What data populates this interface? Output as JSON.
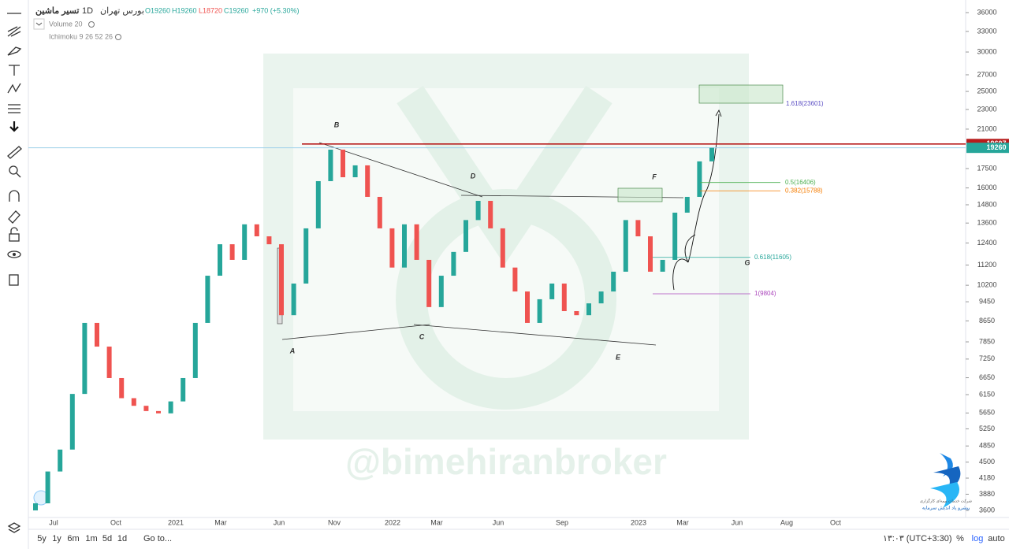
{
  "header": {
    "symbol": "تسیر ماشین",
    "interval": "1D",
    "exchange": "بورس تهران",
    "ohlc": [
      "O19260",
      "H19260",
      "L18720",
      "C19260",
      "+970 (+5.30%)"
    ],
    "indicators": [
      "Volume 20",
      "Ichimoku 9 26 52 26"
    ]
  },
  "chart": {
    "type": "candlestick",
    "log_scale": true,
    "grid": false,
    "up_color": "#26a69a",
    "down_color": "#ef5350",
    "ylim": [
      3600,
      36000
    ],
    "yticks": [
      36000,
      33000,
      30000,
      27000,
      25000,
      23000,
      21000,
      17500,
      16000,
      14800,
      13600,
      12400,
      11200,
      10200,
      9450,
      8650,
      7850,
      7250,
      6650,
      6150,
      5650,
      5250,
      4850,
      4500,
      4180,
      3880,
      3600
    ],
    "xticks": [
      "Jul",
      "Oct",
      "2021",
      "Mar",
      "Jun",
      "Nov",
      "2022",
      "Mar",
      "Jun",
      "Sep",
      "2023",
      "Mar",
      "Jun",
      "Aug",
      "Oct"
    ],
    "open": [
      3600,
      3720,
      4310,
      4770,
      6170,
      8570,
      7680,
      6640,
      6050,
      5840,
      5700,
      5640,
      5960,
      6640,
      8570,
      10660,
      12330,
      11470,
      13520,
      12790,
      12330,
      8880,
      10280,
      13270,
      16510,
      19100,
      16810,
      17760,
      15350,
      13270,
      11070,
      13520,
      11470,
      9220,
      10660,
      11900,
      13790,
      15070,
      13270,
      11070,
      9910,
      8570,
      9560,
      10280,
      9050,
      8880,
      9380,
      9910,
      10860,
      13790,
      12790,
      10860,
      11470,
      14270,
      15350,
      18090
    ],
    "close": [
      3720,
      4310,
      4770,
      6170,
      8570,
      7680,
      6640,
      6050,
      5840,
      5700,
      5640,
      5960,
      6640,
      8570,
      10660,
      12330,
      11470,
      13520,
      12790,
      12330,
      8880,
      10280,
      13270,
      16510,
      19100,
      16810,
      17760,
      15350,
      13270,
      11070,
      13520,
      11470,
      9220,
      10660,
      11900,
      13790,
      15070,
      13270,
      11070,
      9910,
      8570,
      9560,
      10280,
      9050,
      8880,
      9380,
      9910,
      10860,
      13790,
      12790,
      10860,
      11470,
      14270,
      15350,
      18090,
      19260
    ],
    "levels": [
      {
        "value": 19607,
        "color": "#b71c1c"
      },
      {
        "value": 19260,
        "color": "#26a69a"
      }
    ],
    "fib_levels": [
      {
        "price": 23601,
        "label": "1.618(23601)",
        "color": "#5c4fc4"
      },
      {
        "price": 16406,
        "label": "0.5(16406)",
        "color": "#4caf50"
      },
      {
        "price": 15788,
        "label": "0.382(15788)",
        "color": "#f57c00"
      },
      {
        "price": 11605,
        "label": "0.618(11605)",
        "color": "#26a69a"
      },
      {
        "price": 9804,
        "label": "1(9804)",
        "color": "#ab47bc"
      }
    ],
    "wave_labels": [
      "A",
      "B",
      "C",
      "D",
      "E",
      "F",
      "G"
    ],
    "watermark": "@bimehiranbroker"
  },
  "logo": {
    "line1": "شرکت خدمات بیمه‌ای کارگزاری",
    "line2": "پیشرو یاد اندیش سرمایه"
  },
  "footer": {
    "ranges": [
      "5y",
      "1y",
      "6m",
      "1m",
      "5d",
      "1d"
    ],
    "goto": "Go to...",
    "time": "۱۳:۰۳ (UTC+3:30)",
    "percent": "%",
    "log": "log",
    "auto": "auto"
  }
}
